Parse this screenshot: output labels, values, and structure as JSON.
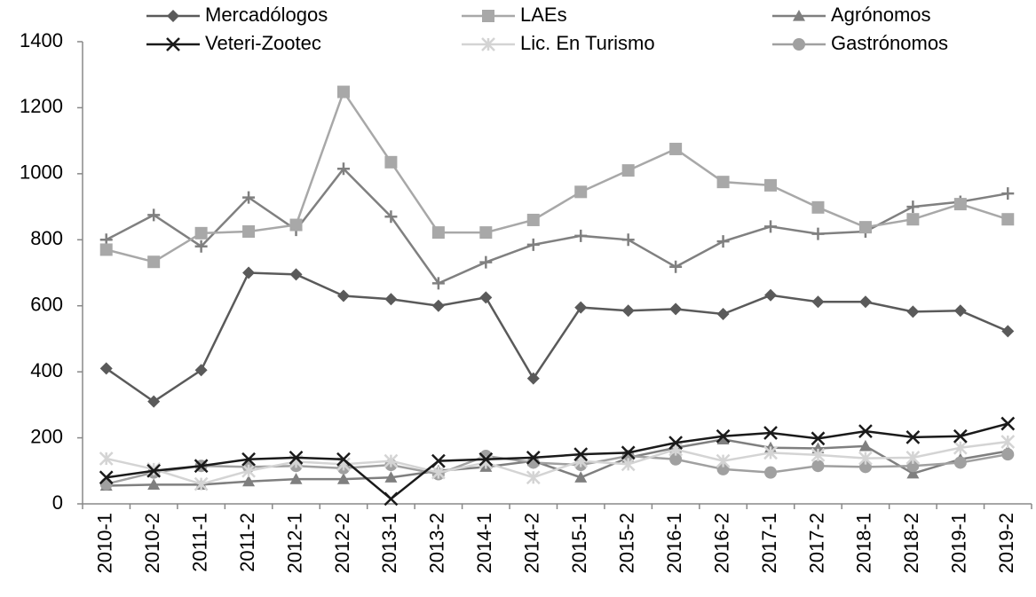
{
  "chart_data": {
    "type": "line",
    "categories": [
      "2010-1",
      "2010-2",
      "2011-1",
      "2011-2",
      "2012-1",
      "2012-2",
      "2013-1",
      "2013-2",
      "2014-1",
      "2014-2",
      "2015-1",
      "2015-2",
      "2016-1",
      "2016-2",
      "2017-1",
      "2017-2",
      "2018-1",
      "2018-2",
      "2019-1",
      "2019-2"
    ],
    "series": [
      {
        "name": "Mercadólogos",
        "color": "#5a5a5a",
        "marker": "diamond",
        "values": [
          410,
          310,
          405,
          700,
          695,
          630,
          620,
          600,
          625,
          380,
          595,
          585,
          590,
          575,
          632,
          612,
          612,
          582,
          585,
          523
        ]
      },
      {
        "name": "LAEs",
        "color": "#a8a8a8",
        "marker": "square",
        "values": [
          770,
          733,
          820,
          825,
          845,
          1248,
          1035,
          822,
          822,
          860,
          945,
          1010,
          1075,
          975,
          965,
          898,
          838,
          862,
          908,
          862
        ]
      },
      {
        "name": "Agrónomos",
        "color": "#7f7f7f",
        "marker": "triangle",
        "values": [
          55,
          58,
          58,
          68,
          75,
          75,
          80,
          100,
          112,
          130,
          80,
          140,
          170,
          195,
          170,
          168,
          175,
          92,
          135,
          160
        ]
      },
      {
        "name": "Veteri-Zootec",
        "color": "#1a1a1a",
        "marker": "x",
        "values": [
          80,
          100,
          115,
          135,
          140,
          135,
          15,
          130,
          135,
          140,
          150,
          155,
          185,
          205,
          215,
          198,
          220,
          202,
          205,
          243
        ]
      },
      {
        "name": "Lic. En Turismo",
        "color": "#d4d4d4",
        "marker": "star",
        "values": [
          137,
          105,
          60,
          100,
          128,
          120,
          130,
          95,
          125,
          80,
          130,
          120,
          165,
          130,
          155,
          148,
          138,
          140,
          170,
          188
        ]
      },
      {
        "name": "Gastrónomos",
        "color": "#a0a0a0",
        "marker": "circle",
        "values": [
          60,
          95,
          115,
          112,
          115,
          108,
          118,
          90,
          145,
          125,
          118,
          145,
          135,
          105,
          95,
          115,
          112,
          115,
          125,
          150
        ]
      },
      {
        "name": null,
        "color": "#808080",
        "marker": "plus",
        "values": [
          800,
          875,
          780,
          928,
          830,
          1015,
          870,
          668,
          732,
          785,
          812,
          800,
          718,
          795,
          840,
          818,
          825,
          900,
          915,
          940
        ]
      }
    ],
    "ylim": [
      0,
      1400
    ],
    "yticks": [
      0,
      200,
      400,
      600,
      800,
      1000,
      1200,
      1400
    ]
  }
}
